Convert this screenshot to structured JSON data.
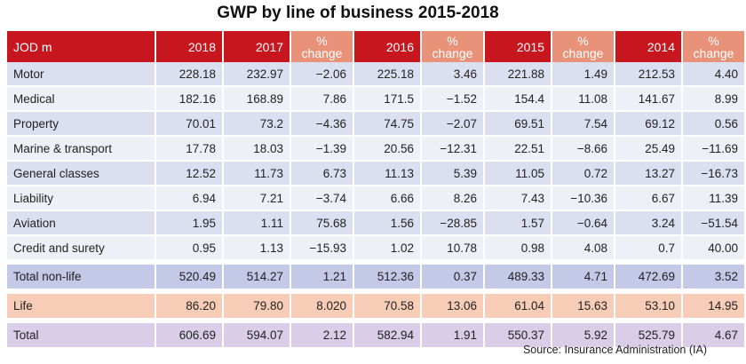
{
  "title": "GWP by line of business 2015-2018",
  "columns": [
    "JOD m",
    "2018",
    "2017",
    "% change",
    "2016",
    "% change",
    "2015",
    "% change",
    "2014",
    "% change"
  ],
  "rows": [
    {
      "label": "Motor",
      "values": [
        "228.18",
        "232.97",
        "−2.06",
        "225.18",
        "3.46",
        "221.88",
        "1.49",
        "212.53",
        "4.40"
      ]
    },
    {
      "label": "Medical",
      "values": [
        "182.16",
        "168.89",
        "7.86",
        "171.5",
        "−1.52",
        "154.4",
        "11.08",
        "141.67",
        "8.99"
      ]
    },
    {
      "label": "Property",
      "values": [
        "70.01",
        "73.2",
        "−4.36",
        "74.75",
        "−2.07",
        "69.51",
        "7.54",
        "69.12",
        "0.56"
      ]
    },
    {
      "label": "Marine & transport",
      "values": [
        "17.78",
        "18.03",
        "−1.39",
        "20.56",
        "−12.31",
        "22.51",
        "−8.66",
        "25.49",
        "−11.69"
      ]
    },
    {
      "label": "General classes",
      "values": [
        "12.52",
        "11.73",
        "6.73",
        "11.13",
        "5.39",
        "11.05",
        "0.72",
        "13.27",
        "−16.73"
      ]
    },
    {
      "label": "Liability",
      "values": [
        "6.94",
        "7.21",
        "−3.74",
        "6.66",
        "8.26",
        "7.43",
        "−10.36",
        "6.67",
        "11.39"
      ]
    },
    {
      "label": "Aviation",
      "values": [
        "1.95",
        "1.11",
        "75.68",
        "1.56",
        "−28.85",
        "1.57",
        "−0.64",
        "3.24",
        "−51.54"
      ]
    },
    {
      "label": "Credit and surety",
      "values": [
        "0.95",
        "1.13",
        "−15.93",
        "1.02",
        "10.78",
        "0.98",
        "4.08",
        "0.7",
        "40.00"
      ]
    }
  ],
  "total_nonlife": {
    "label": "Total non-life",
    "values": [
      "520.49",
      "514.27",
      "1.21",
      "512.36",
      "0.37",
      "489.33",
      "4.71",
      "472.69",
      "3.52"
    ]
  },
  "life": {
    "label": "Life",
    "values": [
      "86.20",
      "79.80",
      "8.020",
      "70.58",
      "13.06",
      "61.04",
      "15.63",
      "53.10",
      "14.95"
    ]
  },
  "total": {
    "label": "Total",
    "values": [
      "606.69",
      "594.07",
      "2.12",
      "582.94",
      "1.91",
      "550.37",
      "5.92",
      "525.79",
      "4.67"
    ]
  },
  "source": "Source: Insurance Administration (IA)",
  "colors": {
    "header_red": "#c8161e",
    "header_salmon": "#e8927a",
    "row_odd": "#dcdff0",
    "row_even": "#eef0f8",
    "total_nonlife": "#c4c9e8",
    "life": "#f8cdb8",
    "total": "#d9cde8"
  }
}
